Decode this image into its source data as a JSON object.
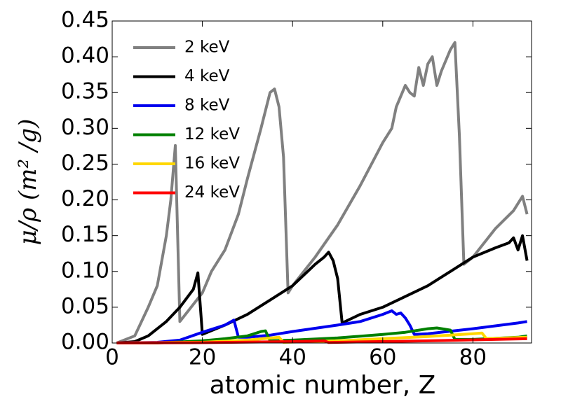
{
  "chart_data": {
    "type": "line",
    "xlabel": "atomic number, Z",
    "ylabel": "μ/ρ (m² /g)",
    "xlim": [
      0,
      93
    ],
    "ylim": [
      0,
      0.45
    ],
    "xticks": [
      0,
      20,
      40,
      60,
      80
    ],
    "yticks": [
      {
        "value": 0,
        "label": "0.00"
      },
      {
        "value": 0.05,
        "label": "0.05"
      },
      {
        "value": 0.1,
        "label": "0.10"
      },
      {
        "value": 0.15,
        "label": "0.15"
      },
      {
        "value": 0.2,
        "label": "0.20"
      },
      {
        "value": 0.25,
        "label": "0.25"
      },
      {
        "value": 0.3,
        "label": "0.30"
      },
      {
        "value": 0.35,
        "label": "0.35"
      },
      {
        "value": 0.4,
        "label": "0.40"
      },
      {
        "value": 0.45,
        "label": "0.45"
      }
    ],
    "legend": "upper left",
    "series": [
      {
        "name": "2 keV",
        "color": "#808080",
        "x": [
          1,
          5,
          8,
          10,
          12,
          13,
          14,
          15,
          20,
          22,
          25,
          28,
          30,
          33,
          35,
          36,
          37,
          38,
          39,
          40,
          45,
          50,
          55,
          60,
          62,
          63,
          65,
          66,
          67,
          68,
          69,
          70,
          71,
          72,
          73,
          75,
          76,
          77,
          78,
          80,
          85,
          89,
          91,
          92
        ],
        "values": [
          0,
          0.01,
          0.05,
          0.08,
          0.15,
          0.2,
          0.276,
          0.03,
          0.07,
          0.1,
          0.13,
          0.18,
          0.23,
          0.3,
          0.35,
          0.355,
          0.33,
          0.26,
          0.07,
          0.08,
          0.12,
          0.165,
          0.22,
          0.28,
          0.3,
          0.33,
          0.36,
          0.35,
          0.345,
          0.385,
          0.36,
          0.39,
          0.4,
          0.36,
          0.38,
          0.41,
          0.42,
          0.29,
          0.11,
          0.12,
          0.16,
          0.185,
          0.205,
          0.18
        ]
      },
      {
        "name": "4 keV",
        "color": "#000000",
        "x": [
          1,
          5,
          8,
          12,
          15,
          18,
          19,
          20,
          25,
          30,
          35,
          40,
          45,
          47,
          48,
          49,
          50,
          51,
          55,
          60,
          65,
          70,
          75,
          80,
          85,
          88,
          89,
          90,
          91,
          92
        ],
        "values": [
          0,
          0.002,
          0.01,
          0.03,
          0.05,
          0.075,
          0.098,
          0.012,
          0.025,
          0.04,
          0.06,
          0.08,
          0.11,
          0.12,
          0.127,
          0.115,
          0.09,
          0.028,
          0.04,
          0.05,
          0.065,
          0.08,
          0.1,
          0.12,
          0.133,
          0.14,
          0.147,
          0.13,
          0.15,
          0.115
        ]
      },
      {
        "name": "8 keV",
        "color": "#0000ee",
        "x": [
          1,
          10,
          15,
          20,
          25,
          27,
          28,
          30,
          35,
          40,
          50,
          55,
          60,
          62,
          63,
          64,
          65,
          66,
          67,
          70,
          80,
          90,
          92
        ],
        "values": [
          0,
          0.001,
          0.004,
          0.015,
          0.025,
          0.032,
          0.008,
          0.008,
          0.011,
          0.016,
          0.025,
          0.03,
          0.04,
          0.045,
          0.04,
          0.042,
          0.035,
          0.025,
          0.012,
          0.013,
          0.02,
          0.028,
          0.03
        ]
      },
      {
        "name": "12 keV",
        "color": "#008000",
        "x": [
          1,
          10,
          20,
          25,
          30,
          33,
          34,
          35,
          40,
          50,
          60,
          65,
          70,
          72,
          75,
          76,
          80,
          90,
          92
        ],
        "values": [
          0,
          0,
          0.003,
          0.006,
          0.01,
          0.016,
          0.017,
          0.003,
          0.004,
          0.007,
          0.012,
          0.015,
          0.02,
          0.021,
          0.018,
          0.005,
          0.005,
          0.008,
          0.01
        ]
      },
      {
        "name": "16 keV",
        "color": "#ffd700",
        "x": [
          1,
          20,
          30,
          37,
          38,
          50,
          70,
          80,
          82,
          83,
          92
        ],
        "values": [
          0,
          0.001,
          0.004,
          0.008,
          0.001,
          0.003,
          0.009,
          0.013,
          0.014,
          0.006,
          0.008
        ]
      },
      {
        "name": "24 keV",
        "color": "#ff0000",
        "x": [
          1,
          20,
          40,
          47,
          48,
          70,
          92
        ],
        "values": [
          0,
          0.0005,
          0.002,
          0.003,
          0.0008,
          0.003,
          0.006
        ]
      }
    ]
  }
}
